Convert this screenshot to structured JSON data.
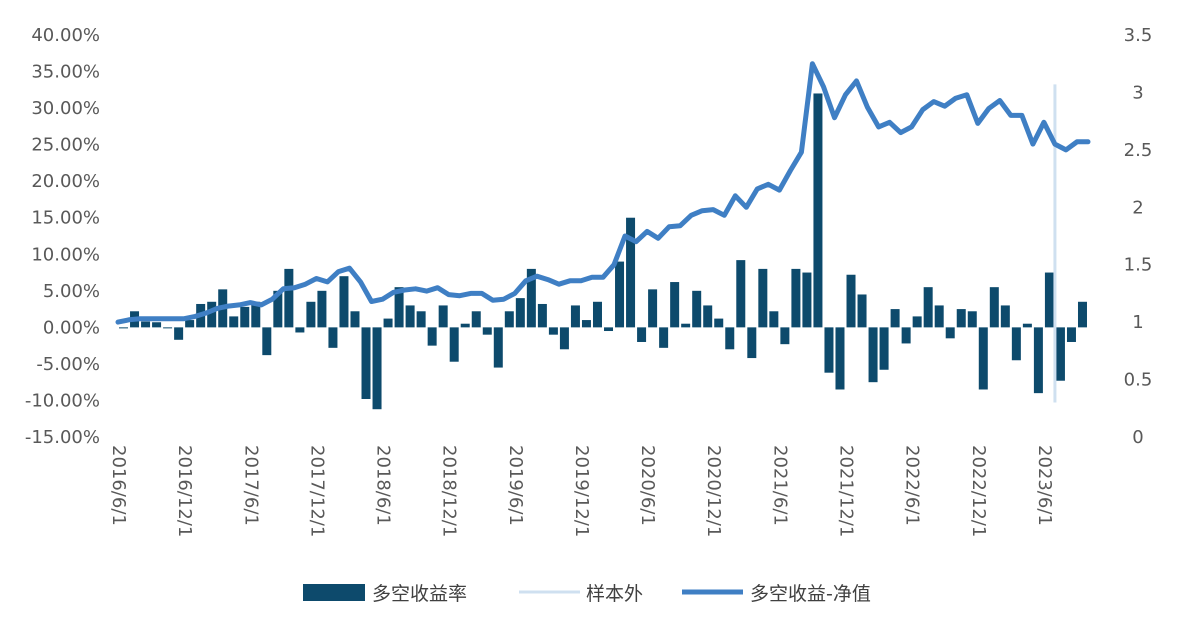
{
  "chart_data": {
    "type": "bar-line-combo",
    "title": "",
    "colors": {
      "bar": "#0d4a6c",
      "line": "#3f7fc4",
      "out_of_sample": "#cfe0f0",
      "text": "#595959"
    },
    "left_axis": {
      "ylim": [
        -0.15,
        0.4
      ],
      "ticks": [
        -0.15,
        -0.1,
        -0.05,
        0.0,
        0.05,
        0.1,
        0.15,
        0.2,
        0.25,
        0.3,
        0.35,
        0.4
      ],
      "tick_labels": [
        "-15.00%",
        "-10.00%",
        "-5.00%",
        "0.00%",
        "5.00%",
        "10.00%",
        "15.00%",
        "20.00%",
        "25.00%",
        "30.00%",
        "35.00%",
        "40.00%"
      ]
    },
    "right_axis": {
      "ylim": [
        0,
        3.5
      ],
      "ticks": [
        0,
        0.5,
        1,
        1.5,
        2,
        2.5,
        3,
        3.5
      ],
      "tick_labels": [
        "0",
        "0.5",
        "1",
        "1.5",
        "2",
        "2.5",
        "3",
        "3.5"
      ]
    },
    "x_tick_labels": [
      "2016/6/1",
      "2016/12/1",
      "2017/6/1",
      "2017/12/1",
      "2018/6/1",
      "2018/12/1",
      "2019/6/1",
      "2019/12/1",
      "2020/6/1",
      "2020/12/1",
      "2021/6/1",
      "2021/12/1",
      "2022/6/1",
      "2022/12/1",
      "2023/6/1"
    ],
    "x_tick_month_index": [
      0,
      6,
      12,
      18,
      24,
      30,
      36,
      42,
      48,
      54,
      60,
      66,
      72,
      78,
      84
    ],
    "n_months": 88,
    "series": [
      {
        "name": "多空收益率",
        "type": "bar",
        "axis": "left",
        "values": [
          0.0,
          0.022,
          0.008,
          0.007,
          0.0,
          -0.017,
          0.01,
          0.032,
          0.035,
          0.052,
          0.015,
          0.028,
          0.035,
          -0.038,
          0.05,
          0.08,
          -0.007,
          0.035,
          0.05,
          -0.028,
          0.07,
          0.022,
          -0.098,
          -0.112,
          0.012,
          0.055,
          0.03,
          0.022,
          -0.025,
          0.03,
          -0.047,
          0.005,
          0.022,
          -0.01,
          -0.055,
          0.022,
          0.04,
          0.08,
          0.032,
          -0.01,
          -0.03,
          0.03,
          0.01,
          0.035,
          -0.005,
          0.09,
          0.15,
          -0.02,
          0.052,
          -0.028,
          0.062,
          0.005,
          0.05,
          0.03,
          0.012,
          -0.03,
          0.092,
          -0.042,
          0.08,
          0.022,
          -0.023,
          0.08,
          0.075,
          0.32,
          -0.062,
          -0.085,
          0.072,
          0.045,
          -0.075,
          -0.058,
          0.025,
          -0.022,
          0.015,
          0.055,
          0.03,
          -0.015,
          0.025,
          0.022,
          -0.085,
          0.055,
          0.03,
          -0.045,
          0.005,
          -0.09,
          0.075,
          -0.073,
          -0.02,
          0.035,
          -0.008
        ]
      },
      {
        "name": "样本外",
        "type": "vline",
        "axis": "right",
        "at_month": 85,
        "y_range": [
          0.3,
          3.07
        ]
      },
      {
        "name": "多空收益-净值",
        "type": "line",
        "axis": "right",
        "values": [
          1.0,
          1.02,
          1.03,
          1.03,
          1.03,
          1.03,
          1.03,
          1.05,
          1.08,
          1.12,
          1.14,
          1.15,
          1.17,
          1.15,
          1.2,
          1.29,
          1.3,
          1.33,
          1.38,
          1.35,
          1.44,
          1.47,
          1.35,
          1.18,
          1.2,
          1.26,
          1.28,
          1.29,
          1.27,
          1.3,
          1.24,
          1.23,
          1.25,
          1.25,
          1.19,
          1.2,
          1.25,
          1.36,
          1.4,
          1.37,
          1.33,
          1.36,
          1.36,
          1.39,
          1.39,
          1.5,
          1.75,
          1.7,
          1.79,
          1.73,
          1.83,
          1.84,
          1.93,
          1.97,
          1.98,
          1.93,
          2.1,
          2.0,
          2.16,
          2.2,
          2.15,
          2.32,
          2.48,
          3.25,
          3.05,
          2.78,
          2.98,
          3.1,
          2.87,
          2.7,
          2.74,
          2.65,
          2.7,
          2.85,
          2.92,
          2.88,
          2.95,
          2.98,
          2.73,
          2.86,
          2.93,
          2.8,
          2.8,
          2.55,
          2.74,
          2.55,
          2.5,
          2.57,
          2.57
        ]
      }
    ],
    "legend": {
      "position": "bottom",
      "labels": [
        "多空收益率",
        "样本外",
        "多空收益-净值"
      ]
    }
  }
}
